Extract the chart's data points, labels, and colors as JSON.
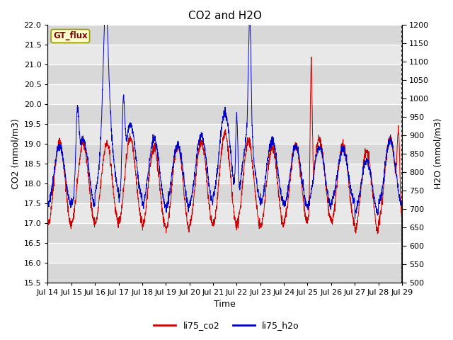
{
  "title": "CO2 and H2O",
  "xlabel": "Time",
  "ylabel_left": "CO2 (mmol/m3)",
  "ylabel_right": "H2O (mmol/m3)",
  "ylim_left": [
    15.5,
    22.0
  ],
  "ylim_right": [
    500,
    1200
  ],
  "yticks_left": [
    15.5,
    16.0,
    16.5,
    17.0,
    17.5,
    18.0,
    18.5,
    19.0,
    19.5,
    20.0,
    20.5,
    21.0,
    21.5,
    22.0
  ],
  "yticks_right": [
    500,
    550,
    600,
    650,
    700,
    750,
    800,
    850,
    900,
    950,
    1000,
    1050,
    1100,
    1150,
    1200
  ],
  "xtick_labels": [
    "Jul 14",
    "Jul 15",
    "Jul 16",
    "Jul 17",
    "Jul 18",
    "Jul 19",
    "Jul 20",
    "Jul 21",
    "Jul 22",
    "Jul 23",
    "Jul 24",
    "Jul 25",
    "Jul 26",
    "Jul 27",
    "Jul 28",
    "Jul 29"
  ],
  "color_co2": "#cc0000",
  "color_h2o": "#0000cc",
  "legend_label_co2": "li75_co2",
  "legend_label_h2o": "li75_h2o",
  "label_box_text": "GT_flux",
  "label_box_color": "#ffffcc",
  "label_box_edge": "#999900",
  "band_colors": [
    "#d8d8d8",
    "#e8e8e8"
  ],
  "title_fontsize": 11,
  "axis_fontsize": 9,
  "tick_fontsize": 8,
  "legend_fontsize": 9
}
